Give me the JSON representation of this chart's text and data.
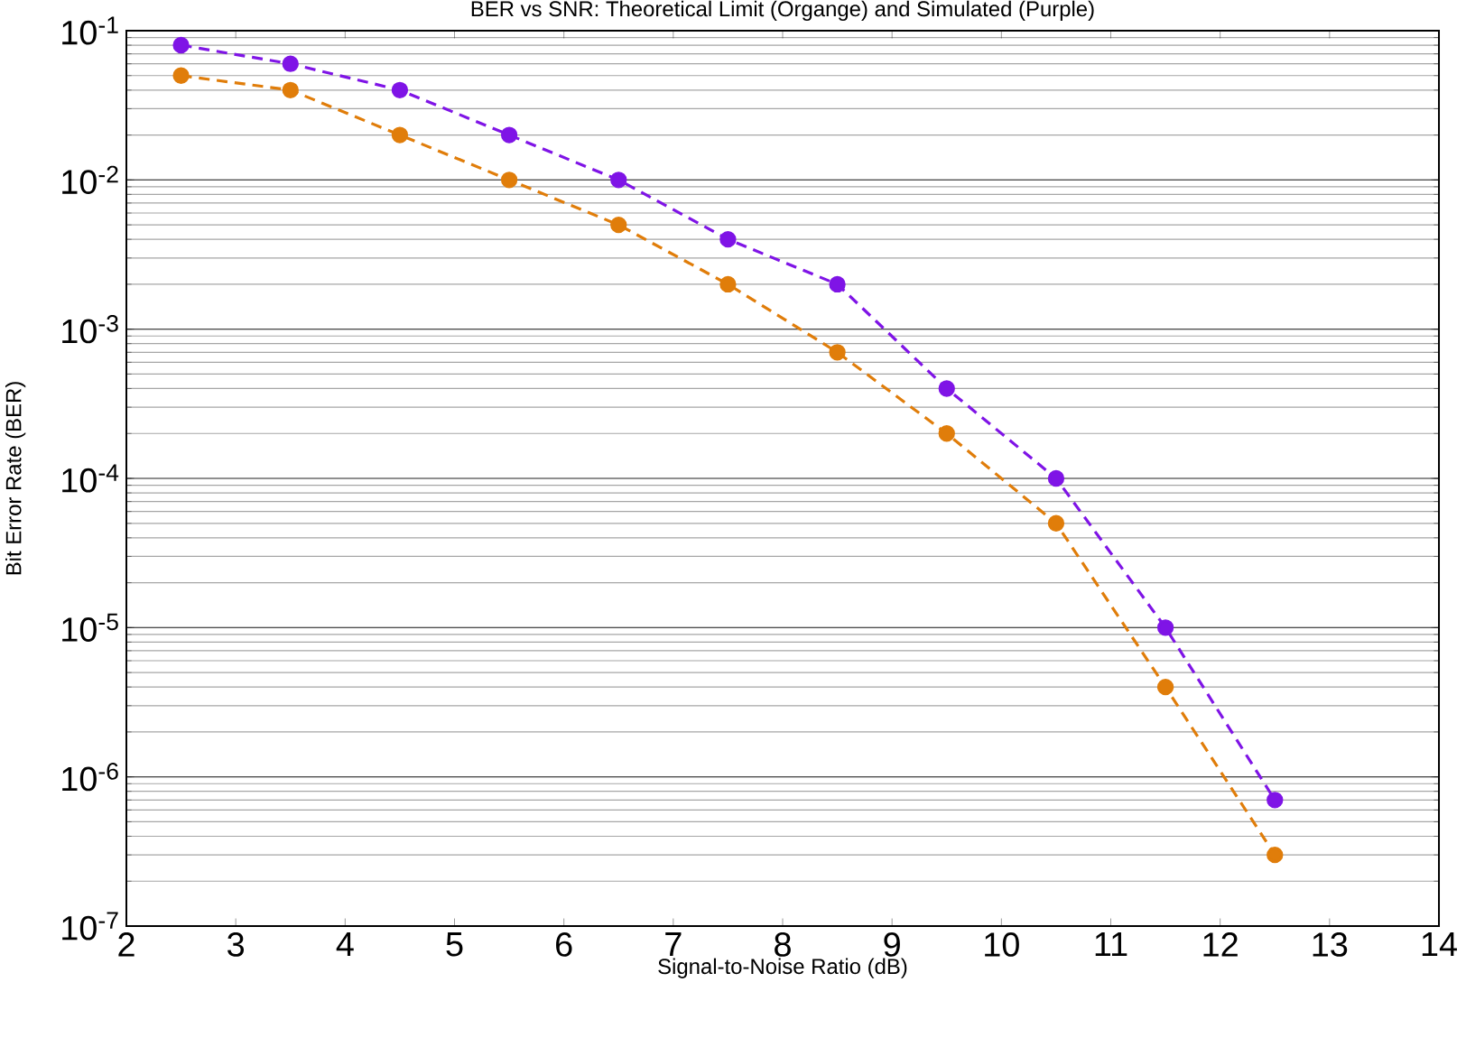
{
  "chart_data": {
    "type": "line",
    "title": "BER vs SNR: Theoretical Limit (Organge) and Simulated (Purple)",
    "xlabel": "Signal-to-Noise Ratio (dB)",
    "ylabel": "Bit Error Rate (BER)",
    "x": [
      2.5,
      3.5,
      4.5,
      5.5,
      6.5,
      7.5,
      8.5,
      9.5,
      10.5,
      11.5,
      12.5
    ],
    "series": [
      {
        "color": "#7f14e6",
        "values": [
          0.08,
          0.06,
          0.04,
          0.02,
          0.01,
          0.004,
          0.002,
          0.0004,
          0.0001,
          1e-05,
          7e-07
        ]
      },
      {
        "color": "#e07d0a",
        "values": [
          0.05,
          0.04,
          0.02,
          0.01,
          0.005,
          0.002,
          0.0007,
          0.0002,
          5e-05,
          4e-06,
          3e-07
        ]
      }
    ],
    "log": "y",
    "grid": "y",
    "marker": "circle",
    "line_style": "dashed",
    "xlim": [
      2,
      14
    ],
    "xticks": [
      2,
      3,
      4,
      5,
      6,
      7,
      8,
      9,
      10,
      11,
      12,
      13,
      14
    ],
    "ylim": [
      1e-07,
      0.1
    ],
    "yticks": [
      {
        "value": 1e-07,
        "label": "10$^{-7}$"
      },
      {
        "value": 1e-06,
        "label": "10$^{-6}$"
      },
      {
        "value": 1e-05,
        "label": "10$^{-5}$"
      },
      {
        "value": 0.0001,
        "label": "10$^{-4}$"
      },
      {
        "value": 0.001,
        "label": "10$^{-3}$"
      },
      {
        "value": 0.01,
        "label": "10$^{-2}$"
      },
      {
        "value": 0.1,
        "label": "10$^{-1}$"
      }
    ]
  }
}
